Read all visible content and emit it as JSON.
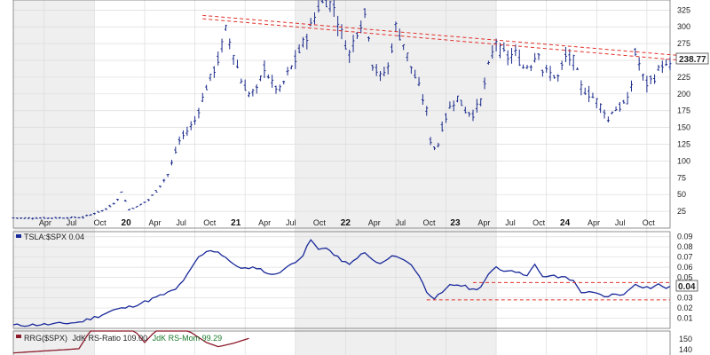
{
  "chart_data": [
    {
      "type": "ohlc",
      "series_name": "TSLA",
      "price_label": "238.77",
      "x_tick_labels": [
        "Apr",
        "Jul",
        "Oct",
        "20",
        "Apr",
        "Jul",
        "Oct",
        "21",
        "Apr",
        "Jul",
        "Oct",
        "22",
        "Apr",
        "Jul",
        "Oct",
        "23",
        "Apr",
        "Jul",
        "Oct",
        "24",
        "Apr",
        "Jul",
        "Oct"
      ],
      "year_labels": [
        "20",
        "21",
        "22",
        "23",
        "24"
      ],
      "y_ticks": [
        25,
        50,
        75,
        100,
        125,
        150,
        175,
        200,
        225,
        250,
        275,
        300,
        325
      ],
      "ylim": [
        0,
        340
      ],
      "anchors": [
        [
          0,
          15
        ],
        [
          10,
          15
        ],
        [
          18,
          16
        ],
        [
          20,
          20
        ],
        [
          24,
          28
        ],
        [
          27,
          42
        ],
        [
          28,
          55
        ],
        [
          29,
          40
        ],
        [
          30,
          28
        ],
        [
          32,
          32
        ],
        [
          35,
          42
        ],
        [
          37,
          55
        ],
        [
          40,
          80
        ],
        [
          43,
          130
        ],
        [
          45,
          145
        ],
        [
          47,
          160
        ],
        [
          50,
          210
        ],
        [
          53,
          250
        ],
        [
          55,
          295
        ],
        [
          57,
          260
        ],
        [
          59,
          220
        ],
        [
          61,
          200
        ],
        [
          63,
          205
        ],
        [
          65,
          240
        ],
        [
          67,
          215
        ],
        [
          69,
          205
        ],
        [
          71,
          230
        ],
        [
          73,
          250
        ],
        [
          75,
          275
        ],
        [
          77,
          300
        ],
        [
          79,
          330
        ],
        [
          81,
          340
        ],
        [
          83,
          330
        ],
        [
          85,
          290
        ],
        [
          87,
          260
        ],
        [
          89,
          295
        ],
        [
          91,
          318
        ],
        [
          92,
          290
        ],
        [
          93,
          245
        ],
        [
          95,
          225
        ],
        [
          97,
          240
        ],
        [
          99,
          300
        ],
        [
          101,
          275
        ],
        [
          103,
          240
        ],
        [
          105,
          210
        ],
        [
          107,
          175
        ],
        [
          108,
          130
        ],
        [
          109,
          120
        ],
        [
          110,
          125
        ],
        [
          111,
          150
        ],
        [
          113,
          180
        ],
        [
          115,
          195
        ],
        [
          117,
          175
        ],
        [
          119,
          170
        ],
        [
          121,
          190
        ],
        [
          123,
          240
        ],
        [
          125,
          280
        ],
        [
          126,
          265
        ],
        [
          128,
          255
        ],
        [
          130,
          260
        ],
        [
          132,
          240
        ],
        [
          134,
          245
        ],
        [
          136,
          265
        ],
        [
          137,
          235
        ],
        [
          139,
          230
        ],
        [
          141,
          225
        ],
        [
          143,
          255
        ],
        [
          145,
          250
        ],
        [
          147,
          210
        ],
        [
          149,
          200
        ],
        [
          151,
          190
        ],
        [
          153,
          175
        ],
        [
          154,
          160
        ],
        [
          155,
          175
        ],
        [
          157,
          180
        ],
        [
          159,
          190
        ],
        [
          160,
          215
        ],
        [
          161,
          260
        ],
        [
          162,
          245
        ],
        [
          163,
          225
        ],
        [
          164,
          215
        ],
        [
          166,
          225
        ],
        [
          168,
          245
        ],
        [
          169,
          240
        ]
      ],
      "resistance_lines": [
        [
          [
            49,
            317
          ],
          [
            173,
            257
          ]
        ],
        [
          [
            49,
            312
          ],
          [
            173,
            250
          ]
        ]
      ]
    },
    {
      "type": "line",
      "series_name": "TSLA:$SPX",
      "label": "TSLA:$SPX 0.04",
      "value_label": "0.04",
      "y_ticks": [
        "0.09",
        "0.08",
        "0.07",
        "0.06",
        "0.05",
        "0.04",
        "0.03",
        "0.02",
        "0.01"
      ],
      "ylim": [
        0,
        0.095
      ],
      "anchors": [
        [
          0,
          0.003
        ],
        [
          10,
          0.004
        ],
        [
          17,
          0.006
        ],
        [
          22,
          0.012
        ],
        [
          26,
          0.018
        ],
        [
          30,
          0.021
        ],
        [
          34,
          0.026
        ],
        [
          38,
          0.032
        ],
        [
          42,
          0.038
        ],
        [
          45,
          0.052
        ],
        [
          48,
          0.07
        ],
        [
          51,
          0.077
        ],
        [
          53,
          0.075
        ],
        [
          55,
          0.07
        ],
        [
          57,
          0.062
        ],
        [
          59,
          0.06
        ],
        [
          61,
          0.058
        ],
        [
          63,
          0.06
        ],
        [
          65,
          0.056
        ],
        [
          67,
          0.052
        ],
        [
          69,
          0.056
        ],
        [
          71,
          0.06
        ],
        [
          73,
          0.066
        ],
        [
          75,
          0.072
        ],
        [
          77,
          0.087
        ],
        [
          79,
          0.077
        ],
        [
          81,
          0.08
        ],
        [
          83,
          0.072
        ],
        [
          85,
          0.067
        ],
        [
          87,
          0.062
        ],
        [
          89,
          0.07
        ],
        [
          91,
          0.074
        ],
        [
          93,
          0.067
        ],
        [
          95,
          0.063
        ],
        [
          97,
          0.068
        ],
        [
          99,
          0.072
        ],
        [
          101,
          0.067
        ],
        [
          103,
          0.063
        ],
        [
          105,
          0.052
        ],
        [
          107,
          0.036
        ],
        [
          109,
          0.03
        ],
        [
          111,
          0.034
        ],
        [
          113,
          0.042
        ],
        [
          115,
          0.043
        ],
        [
          117,
          0.041
        ],
        [
          119,
          0.038
        ],
        [
          121,
          0.041
        ],
        [
          123,
          0.052
        ],
        [
          125,
          0.061
        ],
        [
          127,
          0.056
        ],
        [
          129,
          0.058
        ],
        [
          131,
          0.054
        ],
        [
          133,
          0.053
        ],
        [
          135,
          0.062
        ],
        [
          137,
          0.05
        ],
        [
          139,
          0.052
        ],
        [
          141,
          0.05
        ],
        [
          143,
          0.051
        ],
        [
          145,
          0.046
        ],
        [
          147,
          0.036
        ],
        [
          149,
          0.035
        ],
        [
          151,
          0.034
        ],
        [
          153,
          0.031
        ],
        [
          155,
          0.033
        ],
        [
          157,
          0.033
        ],
        [
          159,
          0.036
        ],
        [
          161,
          0.044
        ],
        [
          163,
          0.041
        ],
        [
          165,
          0.04
        ],
        [
          167,
          0.043
        ],
        [
          169,
          0.04
        ]
      ],
      "support_resistance": [
        [
          [
            119,
            0.045
          ],
          [
            170,
            0.045
          ]
        ],
        [
          [
            107,
            0.028
          ],
          [
            170,
            0.028
          ]
        ]
      ]
    },
    {
      "type": "line",
      "series": [
        {
          "name": "JdK RS-Ratio 109.00",
          "color": "#8b1a2b",
          "values": [
            [
              0,
              95
            ],
            [
              17,
              105
            ],
            [
              22,
              180
            ],
            [
              25,
              185
            ],
            [
              29,
              175
            ],
            [
              34,
              120
            ],
            [
              38,
              160
            ],
            [
              41,
              168
            ],
            [
              45,
              150
            ],
            [
              50,
              120
            ],
            [
              53,
              110
            ],
            [
              57,
              118
            ],
            [
              61,
              130
            ]
          ]
        },
        {
          "name": "JdK RS-Mom 99.29",
          "color": "#1a7a2b"
        }
      ],
      "label_parts": {
        "prefix": "RRG($SPX)",
        "ratio": "JdK RS-Ratio 109.00",
        "mom": "JdK RS-Mom 99.29"
      },
      "y_ticks": [
        "150",
        "140"
      ]
    }
  ]
}
